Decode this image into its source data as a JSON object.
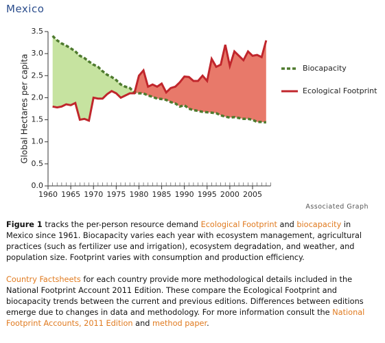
{
  "page_title": "Mexico",
  "chart_data": {
    "type": "line",
    "ylabel": "Global Hectares per capita",
    "x": [
      1961,
      1962,
      1963,
      1964,
      1965,
      1966,
      1967,
      1968,
      1969,
      1970,
      1971,
      1972,
      1973,
      1974,
      1975,
      1976,
      1977,
      1978,
      1979,
      1980,
      1981,
      1982,
      1983,
      1984,
      1985,
      1986,
      1987,
      1988,
      1989,
      1990,
      1991,
      1992,
      1993,
      1994,
      1995,
      1996,
      1997,
      1998,
      1999,
      2000,
      2001,
      2002,
      2003,
      2004,
      2005,
      2006,
      2007,
      2008
    ],
    "series": [
      {
        "name": "Biocapacity",
        "color": "#4e7a2e",
        "fill": "#c6e3a0",
        "dashed": true,
        "values": [
          3.4,
          3.3,
          3.23,
          3.18,
          3.12,
          3.05,
          2.95,
          2.9,
          2.82,
          2.75,
          2.7,
          2.6,
          2.52,
          2.47,
          2.4,
          2.3,
          2.25,
          2.22,
          2.12,
          2.1,
          2.1,
          2.05,
          2.02,
          1.98,
          1.97,
          1.95,
          1.9,
          1.87,
          1.8,
          1.83,
          1.75,
          1.72,
          1.7,
          1.68,
          1.67,
          1.66,
          1.65,
          1.6,
          1.57,
          1.55,
          1.56,
          1.54,
          1.52,
          1.52,
          1.5,
          1.45,
          1.45,
          1.44
        ]
      },
      {
        "name": "Ecological Footprint",
        "color": "#c0262c",
        "fill": "#e8796a",
        "dashed": false,
        "values": [
          1.8,
          1.78,
          1.8,
          1.85,
          1.83,
          1.88,
          1.5,
          1.52,
          1.48,
          2.0,
          1.98,
          1.98,
          2.08,
          2.15,
          2.1,
          2.0,
          2.05,
          2.1,
          2.1,
          2.5,
          2.62,
          2.25,
          2.3,
          2.25,
          2.32,
          2.12,
          2.22,
          2.25,
          2.35,
          2.48,
          2.47,
          2.38,
          2.38,
          2.5,
          2.38,
          2.88,
          2.7,
          2.75,
          3.2,
          2.72,
          3.05,
          2.95,
          2.85,
          3.05,
          2.95,
          2.97,
          2.92,
          3.3
        ]
      }
    ],
    "xlim": [
      1960,
      2009
    ],
    "xticks": [
      1960,
      1965,
      1970,
      1975,
      1980,
      1985,
      1990,
      1995,
      2000,
      2005
    ],
    "ylim": [
      0,
      3.5
    ],
    "yticks": [
      {
        "value": 0,
        "label": "0.0"
      },
      0.5,
      {
        "value": 1,
        "label": "1.0"
      },
      1.5,
      {
        "value": 2,
        "label": "2.0"
      },
      2.5,
      {
        "value": 3,
        "label": "3.0"
      },
      3.5
    ],
    "legend": "right"
  },
  "graph_link": "Associated Graph",
  "paragraphs": [
    [
      {
        "text": "Figure 1",
        "bold": true
      },
      {
        "text": " tracks the per-person resource demand "
      },
      {
        "text": "Ecological Footprint",
        "link": true
      },
      {
        "text": " and "
      },
      {
        "text": "biocapacity",
        "link": true
      },
      {
        "text": " in Mexico since 1961. Biocapacity varies each year with ecosystem management, agricultural practices (such as fertilizer use and irrigation), ecosystem degradation, and weather, and population size. Footprint varies with consumption and production efficiency."
      }
    ],
    [
      {
        "text": "Country Factsheets",
        "link": true
      },
      {
        "text": " for each country provide more methodological details included in the National Footprint Account 2011 Edition. These compare the Ecological Footprint and biocapacity trends between the current and previous editions. Differences between editions emerge due to changes in data and methodology. For more information consult the "
      },
      {
        "text": "National Footprint Accounts, 2011 Edition",
        "link": true
      },
      {
        "text": " and "
      },
      {
        "text": "method paper",
        "link": true
      },
      {
        "text": "."
      }
    ]
  ]
}
